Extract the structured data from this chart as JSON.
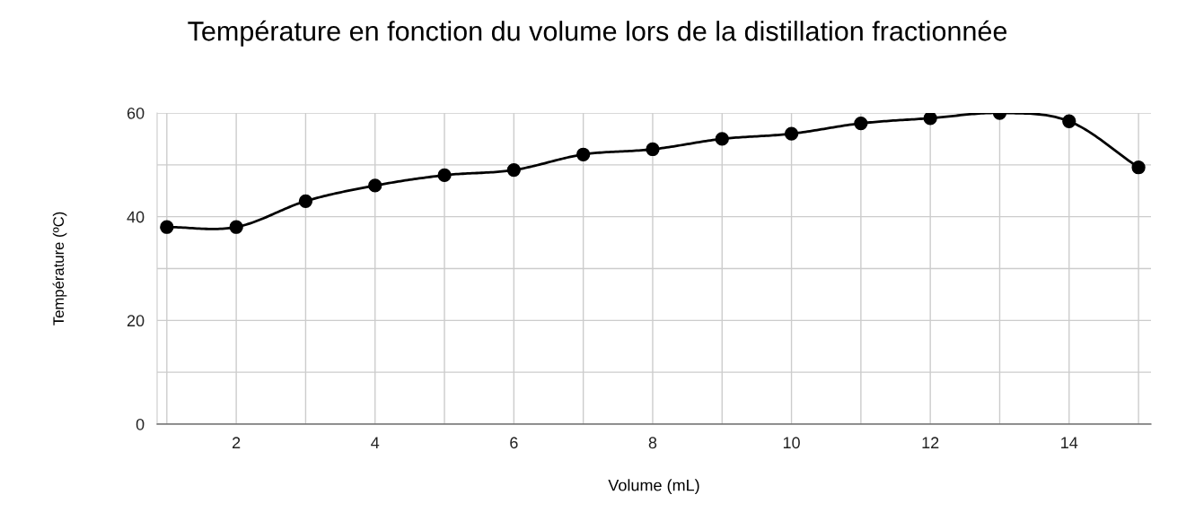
{
  "chart_data": {
    "type": "line",
    "title": "Température en fonction du volume lors de la distillation fractionnée",
    "xlabel": "Volume (mL)",
    "ylabel": "Température (ºC)",
    "x": [
      1,
      2,
      3,
      4,
      5,
      6,
      7,
      8,
      9,
      10,
      11,
      12,
      13,
      14,
      15
    ],
    "series": [
      {
        "color": "#000000",
        "values": [
          38,
          38,
          43,
          46,
          48,
          49,
          52,
          53,
          55,
          56,
          58,
          59,
          60,
          58.4,
          49.5
        ]
      }
    ],
    "xlim": [
      0.86,
      15.18
    ],
    "xticks": [
      {
        "value": 1,
        "label": null
      },
      2,
      {
        "value": 3,
        "label": null
      },
      4,
      {
        "value": 5,
        "label": null
      },
      6,
      {
        "value": 7,
        "label": null
      },
      8,
      {
        "value": 9,
        "label": null
      },
      10,
      {
        "value": 11,
        "label": null
      },
      12,
      {
        "value": 13,
        "label": null
      },
      14,
      {
        "value": 15,
        "label": null
      }
    ],
    "ylim": [
      0,
      60
    ],
    "yticks": [
      0,
      {
        "value": 10,
        "label": null
      },
      20,
      {
        "value": 30,
        "label": null
      },
      40,
      {
        "value": 50,
        "label": null
      },
      60
    ],
    "grid": true,
    "legend": false,
    "marker": "circle",
    "line_style": "solid"
  }
}
